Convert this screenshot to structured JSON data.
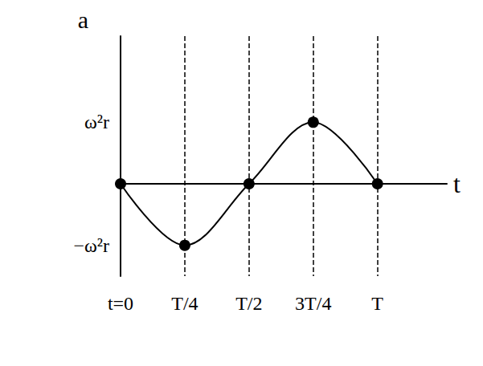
{
  "chart_data": {
    "type": "line",
    "x_label": "t",
    "y_label": "a",
    "x": [
      0,
      0.25,
      0.5,
      0.75,
      1
    ],
    "values": [
      0,
      -1,
      0,
      1,
      0
    ],
    "color": "#000000",
    "marker": "circle",
    "line_style": "solid",
    "xlim": [
      0,
      1.27
    ],
    "xticks": [
      {
        "value": 0,
        "label": "t=0"
      },
      {
        "value": 0.25,
        "label": "T/4"
      },
      {
        "value": 0.5,
        "label": "T/2"
      },
      {
        "value": 0.75,
        "label": "3T/4"
      },
      {
        "value": 1,
        "label": "T"
      }
    ],
    "ylim": [
      -1.5,
      2.4
    ],
    "yticks": [
      {
        "value": -1,
        "label": "−ω²r"
      },
      {
        "value": 1,
        "label": "ω²r"
      }
    ],
    "grid": true
  }
}
